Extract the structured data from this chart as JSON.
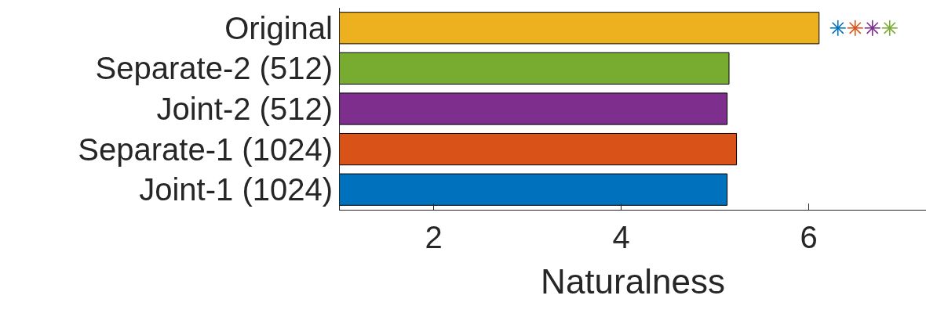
{
  "chart_data": {
    "type": "bar",
    "orientation": "horizontal",
    "xlabel": "Naturalness",
    "categories": [
      "Original",
      "Separate-2 (512)",
      "Joint-2 (512)",
      "Separate-1 (1024)",
      "Joint-1 (1024)"
    ],
    "series": [
      {
        "values": [
          6.11,
          5.15,
          5.13,
          5.23,
          5.13
        ],
        "colors": [
          "#edb120",
          "#77ac30",
          "#7e2f8e",
          "#d95319",
          "#0072bd"
        ]
      }
    ],
    "xlim": [
      1,
      7.25
    ],
    "xticks": [
      2,
      4,
      6
    ]
  }
}
